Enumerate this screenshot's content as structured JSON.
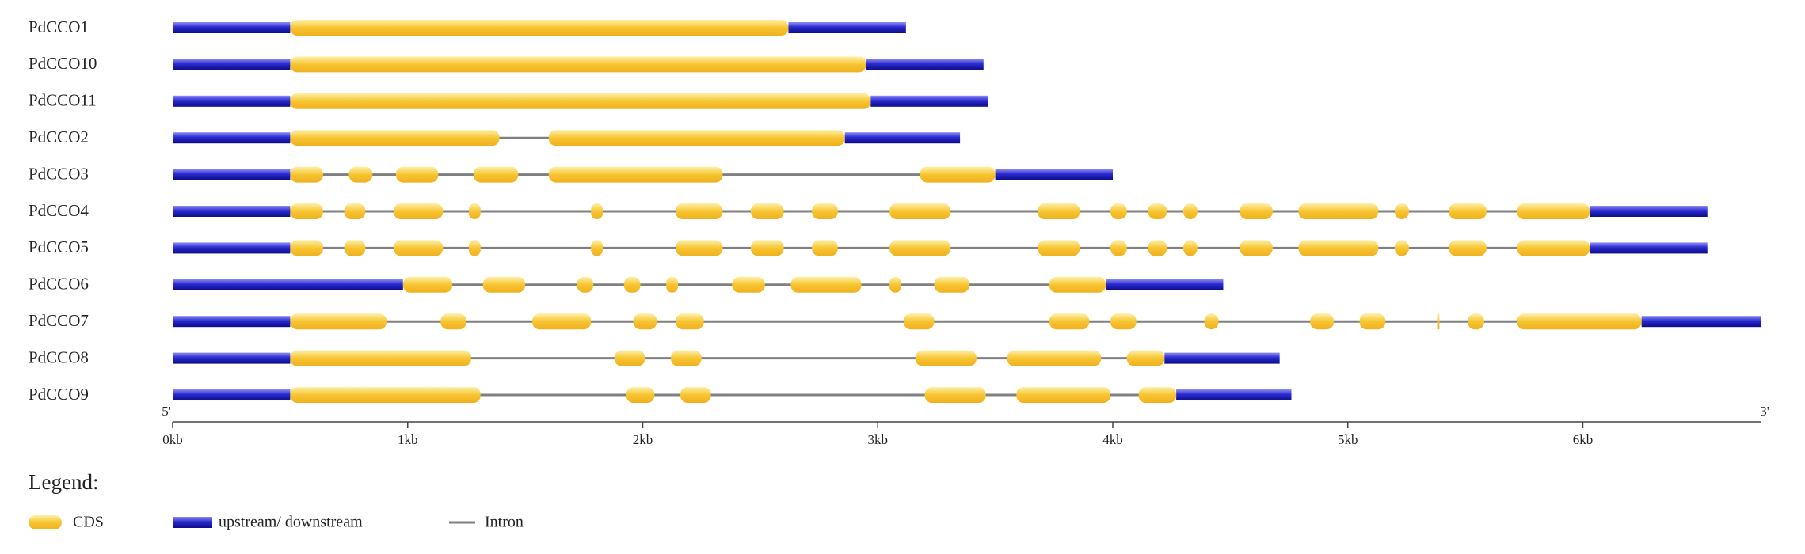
{
  "chart_data": {
    "type": "gene-structure",
    "xlim": [
      0,
      6.76
    ],
    "xticks": [
      {
        "value": 0,
        "label": "0kb"
      },
      {
        "value": 1,
        "label": "1kb"
      },
      {
        "value": 2,
        "label": "2kb"
      },
      {
        "value": 3,
        "label": "3kb"
      },
      {
        "value": 4,
        "label": "4kb"
      },
      {
        "value": 5,
        "label": "5kb"
      },
      {
        "value": 6,
        "label": "6kb"
      }
    ],
    "axis_start_label": "5'",
    "axis_end_label": "3'",
    "colors": {
      "cds": "#f7c531",
      "utr": "#2a2ad0",
      "intron": "#808080"
    },
    "legend": {
      "title": "Legend:",
      "cds": "CDS",
      "utr": "upstream/ downstream",
      "intron": "Intron"
    },
    "genes": [
      {
        "name": "PdCCO1",
        "upstream": [
          0,
          0.5
        ],
        "cds": [
          [
            0.5,
            2.62
          ]
        ],
        "downstream": [
          2.62,
          3.12
        ]
      },
      {
        "name": "PdCCO10",
        "upstream": [
          0,
          0.5
        ],
        "cds": [
          [
            0.5,
            2.95
          ]
        ],
        "downstream": [
          2.95,
          3.45
        ]
      },
      {
        "name": "PdCCO11",
        "upstream": [
          0,
          0.5
        ],
        "cds": [
          [
            0.5,
            2.97
          ]
        ],
        "downstream": [
          2.97,
          3.47
        ]
      },
      {
        "name": "PdCCO2",
        "upstream": [
          0,
          0.5
        ],
        "cds": [
          [
            0.5,
            1.39
          ],
          [
            1.6,
            2.86
          ]
        ],
        "downstream": [
          2.86,
          3.35
        ]
      },
      {
        "name": "PdCCO3",
        "upstream": [
          0,
          0.5
        ],
        "cds": [
          [
            0.5,
            0.64
          ],
          [
            0.75,
            0.85
          ],
          [
            0.95,
            1.13
          ],
          [
            1.28,
            1.47
          ],
          [
            1.6,
            2.34
          ],
          [
            3.18,
            3.5
          ]
        ],
        "downstream": [
          3.5,
          4.0
        ]
      },
      {
        "name": "PdCCO4",
        "upstream": [
          0,
          0.5
        ],
        "cds": [
          [
            0.5,
            0.64
          ],
          [
            0.73,
            0.82
          ],
          [
            0.94,
            1.15
          ],
          [
            1.26,
            1.31
          ],
          [
            1.78,
            1.83
          ],
          [
            2.14,
            2.34
          ],
          [
            2.46,
            2.6
          ],
          [
            2.72,
            2.83
          ],
          [
            3.05,
            3.31
          ],
          [
            3.68,
            3.86
          ],
          [
            3.99,
            4.06
          ],
          [
            4.15,
            4.23
          ],
          [
            4.3,
            4.36
          ],
          [
            4.54,
            4.68
          ],
          [
            4.79,
            5.13
          ],
          [
            5.2,
            5.26
          ],
          [
            5.43,
            5.59
          ],
          [
            5.72,
            6.03
          ]
        ],
        "downstream": [
          6.03,
          6.53
        ]
      },
      {
        "name": "PdCCO5",
        "upstream": [
          0,
          0.5
        ],
        "cds": [
          [
            0.5,
            0.64
          ],
          [
            0.73,
            0.82
          ],
          [
            0.94,
            1.15
          ],
          [
            1.26,
            1.31
          ],
          [
            1.78,
            1.83
          ],
          [
            2.14,
            2.34
          ],
          [
            2.46,
            2.6
          ],
          [
            2.72,
            2.83
          ],
          [
            3.05,
            3.31
          ],
          [
            3.68,
            3.86
          ],
          [
            3.99,
            4.06
          ],
          [
            4.15,
            4.23
          ],
          [
            4.3,
            4.36
          ],
          [
            4.54,
            4.68
          ],
          [
            4.79,
            5.13
          ],
          [
            5.2,
            5.26
          ],
          [
            5.43,
            5.59
          ],
          [
            5.72,
            6.03
          ]
        ],
        "downstream": [
          6.03,
          6.53
        ]
      },
      {
        "name": "PdCCO6",
        "upstream": [
          0,
          0.98
        ],
        "cds": [
          [
            0.98,
            1.19
          ],
          [
            1.32,
            1.5
          ],
          [
            1.72,
            1.79
          ],
          [
            1.92,
            1.99
          ],
          [
            2.1,
            2.15
          ],
          [
            2.38,
            2.52
          ],
          [
            2.63,
            2.93
          ],
          [
            3.05,
            3.1
          ],
          [
            3.24,
            3.39
          ],
          [
            3.73,
            3.97
          ]
        ],
        "downstream": [
          3.97,
          4.47
        ]
      },
      {
        "name": "PdCCO7",
        "upstream": [
          0,
          0.5
        ],
        "cds": [
          [
            0.5,
            0.91
          ],
          [
            1.14,
            1.25
          ],
          [
            1.53,
            1.78
          ],
          [
            1.96,
            2.06
          ],
          [
            2.14,
            2.26
          ],
          [
            3.11,
            3.24
          ],
          [
            3.73,
            3.9
          ],
          [
            3.99,
            4.1
          ],
          [
            4.39,
            4.45
          ],
          [
            4.84,
            4.94
          ],
          [
            5.05,
            5.16
          ],
          [
            5.38,
            5.39
          ],
          [
            5.51,
            5.58
          ],
          [
            5.72,
            6.25
          ]
        ],
        "downstream": [
          6.25,
          6.76
        ]
      },
      {
        "name": "PdCCO8",
        "upstream": [
          0,
          0.5
        ],
        "cds": [
          [
            0.5,
            1.27
          ],
          [
            1.88,
            2.01
          ],
          [
            2.12,
            2.25
          ],
          [
            3.16,
            3.42
          ],
          [
            3.55,
            3.95
          ],
          [
            4.06,
            4.22
          ]
        ],
        "downstream": [
          4.22,
          4.71
        ]
      },
      {
        "name": "PdCCO9",
        "upstream": [
          0,
          0.5
        ],
        "cds": [
          [
            0.5,
            1.31
          ],
          [
            1.93,
            2.05
          ],
          [
            2.16,
            2.29
          ],
          [
            3.2,
            3.46
          ],
          [
            3.59,
            3.99
          ],
          [
            4.11,
            4.27
          ]
        ],
        "downstream": [
          4.27,
          4.76
        ]
      }
    ]
  }
}
